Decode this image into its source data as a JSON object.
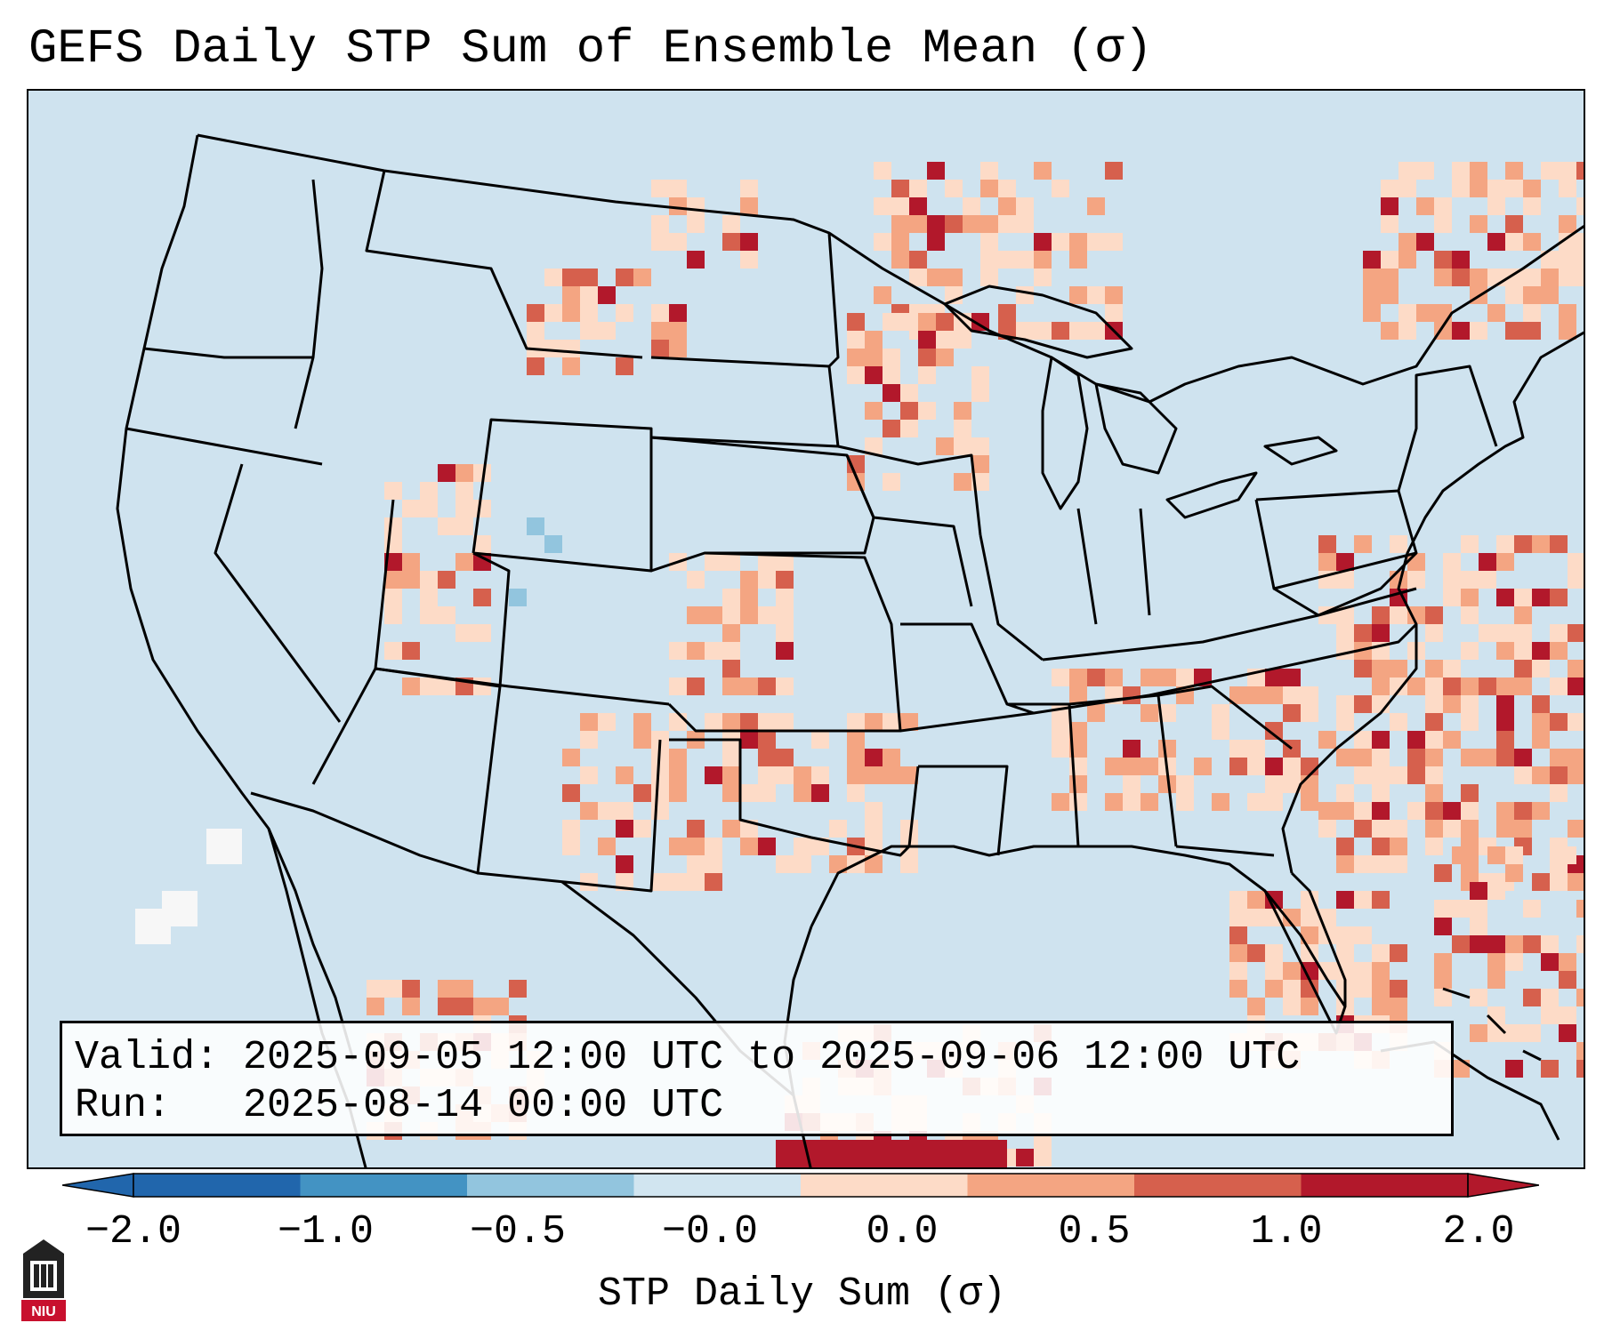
{
  "title": "GEFS Daily STP Sum of Ensemble Mean (σ)",
  "info": {
    "valid_label": "Valid:",
    "valid_value": "2025-09-05 12:00 UTC to 2025-09-06 12:00 UTC",
    "run_label": "Run:",
    "run_value": "2025-08-14 00:00 UTC"
  },
  "colorbar": {
    "label": "STP Daily Sum (σ)",
    "ticks": [
      "−2.0",
      "−1.0",
      "−0.5",
      "−0.0",
      "0.0",
      "0.5",
      "1.0",
      "2.0"
    ],
    "bin_colors": [
      "#2166ac",
      "#4393c3",
      "#92c5de",
      "#d1e5f0",
      "#f7f7f7",
      "#fddbc7",
      "#f4a582",
      "#d6604d",
      "#b2182b"
    ],
    "extend": "both"
  },
  "logo": {
    "name": "NIU",
    "text": "NIU"
  },
  "colors": {
    "ocean_background": "#cfe3ef",
    "borders": "#000000"
  }
}
